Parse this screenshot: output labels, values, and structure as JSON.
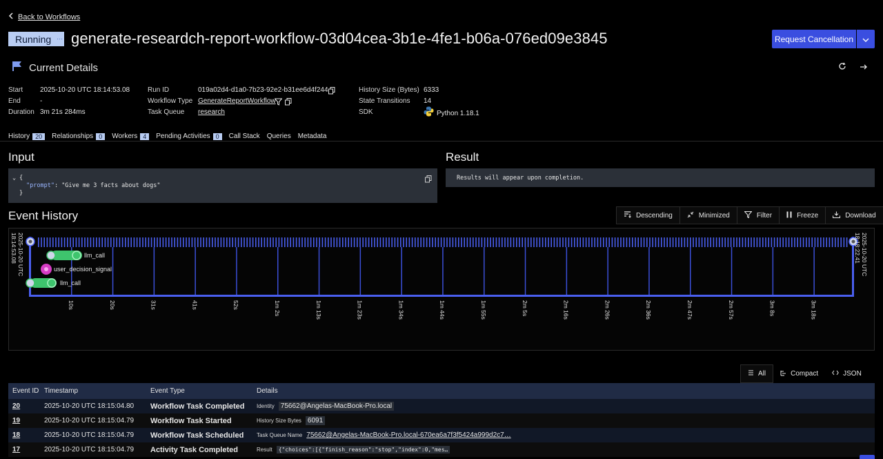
{
  "nav": {
    "back_label": "Back to Workflows"
  },
  "header": {
    "status": "Running",
    "workflow_id": "generate-researdch-report-workflow-03d04cea-3b1e-4fe1-b06a-076ed09e3845",
    "cancel_label": "Request Cancellation"
  },
  "details": {
    "title": "Current Details",
    "start_label": "Start",
    "start_value": "2025-10-20 UTC 18:14:53.08",
    "end_label": "End",
    "end_value": "-",
    "duration_label": "Duration",
    "duration_value": "3m 21s 284ms",
    "run_id_label": "Run ID",
    "run_id_value": "019a02d4-d1a0-7b23-92e2-b31ee6d4f244",
    "workflow_type_label": "Workflow Type",
    "workflow_type_value": "GenerateReportWorkflow",
    "task_queue_label": "Task Queue",
    "task_queue_value": "research",
    "history_size_label": "History Size (Bytes)",
    "history_size_value": "6333",
    "state_transitions_label": "State Transitions",
    "state_transitions_value": "14",
    "sdk_label": "SDK",
    "sdk_value": "Python 1.18.1"
  },
  "tabs": [
    {
      "label": "History",
      "count": "20"
    },
    {
      "label": "Relationships",
      "count": "0"
    },
    {
      "label": "Workers",
      "count": "4"
    },
    {
      "label": "Pending Activities",
      "count": "0"
    },
    {
      "label": "Call Stack"
    },
    {
      "label": "Queries"
    },
    {
      "label": "Metadata"
    }
  ],
  "input": {
    "title": "Input",
    "line1": "{",
    "key": "\"prompt\"",
    "value": ": \"Give me 3 facts about dogs\"",
    "line3": "}"
  },
  "result": {
    "title": "Result",
    "text": "Results will appear upon completion."
  },
  "event_history": {
    "title": "Event History",
    "buttons": [
      "Descending",
      "Minimized",
      "Filter",
      "Freeze",
      "Download"
    ]
  },
  "timeline": {
    "start_label": "2025-10-20 UTC 18:14:53.08",
    "end_label": "2025-10-20 UTC 18:18:22.41",
    "ticks": [
      "10s",
      "20s",
      "31s",
      "41s",
      "52s",
      "1m 2s",
      "1m 13s",
      "1m 23s",
      "1m 34s",
      "1m 44s",
      "1m 55s",
      "2m 5s",
      "2m 16s",
      "2m 26s",
      "2m 36s",
      "2m 47s",
      "2m 57s",
      "3m 8s",
      "3m 18s"
    ],
    "rows": [
      {
        "label": "llm_call"
      },
      {
        "label": "user_decision_signal"
      },
      {
        "label": "llm_call"
      }
    ]
  },
  "view_modes": [
    "All",
    "Compact",
    "JSON"
  ],
  "table": {
    "headers": [
      "Event ID",
      "Timestamp",
      "Event Type",
      "Details"
    ],
    "rows": [
      {
        "id": "20",
        "timestamp": "2025-10-20 UTC 18:15:04.80",
        "type": "Workflow Task Completed",
        "detail_key": "Identity",
        "detail_value": "75662@Angelas-MacBook-Pro.local"
      },
      {
        "id": "19",
        "timestamp": "2025-10-20 UTC 18:15:04.79",
        "type": "Workflow Task Started",
        "detail_key": "History Size Bytes",
        "detail_value": "6091"
      },
      {
        "id": "18",
        "timestamp": "2025-10-20 UTC 18:15:04.79",
        "type": "Workflow Task Scheduled",
        "detail_key": "Task Queue Name",
        "detail_value": "75662@Angelas-MacBook-Pro.local-670ea6a7f3f5424a999d2c7…"
      },
      {
        "id": "17",
        "timestamp": "2025-10-20 UTC 18:15:04.79",
        "type": "Activity Task Completed",
        "detail_key": "Result",
        "detail_value": "{\"choices\":[{\"finish_reason\":\"stop\",\"index\":0,\"mes…"
      }
    ]
  },
  "colors": {
    "accent": "#3a4ee0",
    "pill": "#b9cdf3",
    "timeline_bar": "#4a5ff0",
    "event_green": "#3ec46d",
    "signal_pink": "#d63cc4"
  }
}
